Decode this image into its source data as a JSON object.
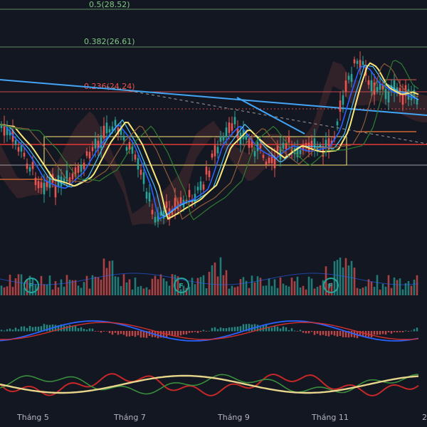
{
  "chart_data": {
    "type": "candlestick",
    "fib_levels": [
      {
        "label": "0.5(28.52)",
        "value": 28.52,
        "color": "#81c784"
      },
      {
        "label": "0.382(26.61)",
        "value": 26.61,
        "color": "#81c784"
      },
      {
        "label": "0.236(24.24)",
        "value": 24.24,
        "color": "#ef5350"
      }
    ],
    "x_ticks": [
      "Tháng 5",
      "Tháng 7",
      "Tháng 9",
      "Tháng 11",
      "2"
    ],
    "event_markers": [
      "F",
      "F",
      "F"
    ],
    "panels": [
      "price",
      "volume",
      "macd",
      "dmi"
    ]
  },
  "colors": {
    "background": "#131722",
    "up": "#26a69a",
    "down": "#ef5350",
    "ma_fast": "#2962ff",
    "ma_slow": "#fbe87a",
    "trendline": "#42a5f5",
    "grid": "#1e222d"
  }
}
